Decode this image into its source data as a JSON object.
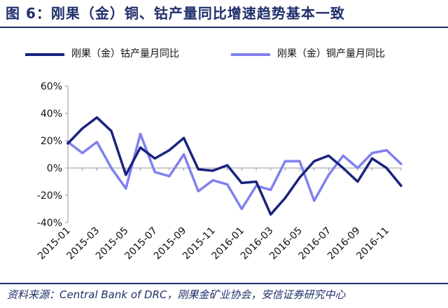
{
  "title": "图 6：刚果（金）铜、钴产量同比增速趋势基本一致",
  "source": "资料来源：Central Bank of DRC，刚果金矿业协会，安信证券研究中心",
  "colors": {
    "dark": "#1a237e",
    "light": "#8080f0",
    "title": "#1f2f6b"
  },
  "chart_data": {
    "type": "line",
    "x": [
      "2015-01",
      "2015-02",
      "2015-03",
      "2015-04",
      "2015-05",
      "2015-06",
      "2015-07",
      "2015-08",
      "2015-09",
      "2015-10",
      "2015-11",
      "2015-12",
      "2016-01",
      "2016-02",
      "2016-03",
      "2016-04",
      "2016-05",
      "2016-06",
      "2016-07",
      "2016-08",
      "2016-09",
      "2016-10",
      "2016-11",
      "2016-12"
    ],
    "tick_labels": [
      "2015-01",
      "2015-03",
      "2015-05",
      "2015-07",
      "2015-09",
      "2015-11",
      "2016-01",
      "2016-03",
      "2016-05",
      "2016-07",
      "2016-09",
      "2016-11"
    ],
    "y_ticks": [
      "60%",
      "40%",
      "20%",
      "0%",
      "-20%",
      "-40%"
    ],
    "ylim": [
      -40,
      60
    ],
    "series": [
      {
        "name": "刚果（金）钴产量月同比",
        "color": "#1a237e",
        "values": [
          18,
          29,
          37,
          27,
          -5,
          15,
          7,
          13,
          22,
          -1,
          -2,
          2,
          -11,
          -10,
          -34,
          -22,
          -7,
          5,
          9,
          0,
          -10,
          7,
          0,
          -13
        ]
      },
      {
        "name": "刚果（金）铜产量月同比",
        "color": "#8080f0",
        "values": [
          19,
          11,
          19,
          0,
          -15,
          25,
          -3,
          -6,
          10,
          -17,
          -9,
          -12,
          -30,
          -13,
          -16,
          5,
          5,
          -24,
          -5,
          9,
          0,
          11,
          13,
          3
        ]
      }
    ]
  }
}
